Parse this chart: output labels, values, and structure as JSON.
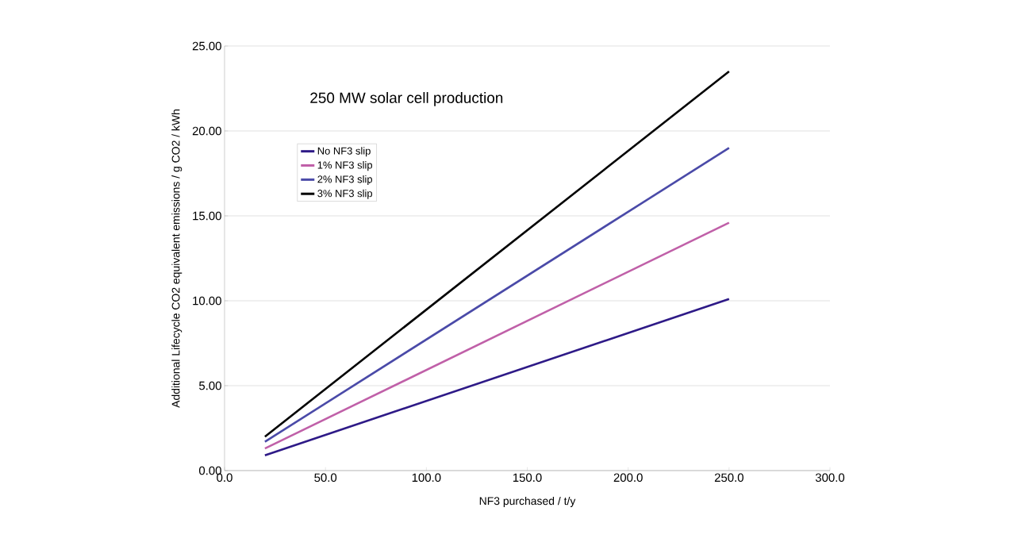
{
  "chart_data": {
    "type": "line",
    "xlabel": "NF3 purchased / t/y",
    "ylabel": "Additional Lifecycle CO2 equivalent emissions / g CO2 / kWh",
    "annotations": [
      "250 MW solar cell production"
    ],
    "x": [
      20,
      250
    ],
    "series": [
      {
        "name": "No NF3 slip",
        "color": "#2e1a87",
        "values": [
          0.9,
          10.1
        ]
      },
      {
        "name": "1% NF3 slip",
        "color": "#c060a8",
        "values": [
          1.3,
          14.6
        ]
      },
      {
        "name": "2% NF3 slip",
        "color": "#4a4aa8",
        "values": [
          1.7,
          19.0
        ]
      },
      {
        "name": "3% NF3 slip",
        "color": "#000000",
        "values": [
          2.0,
          23.5
        ]
      }
    ],
    "xlim": [
      0,
      300
    ],
    "ylim": [
      0,
      25
    ],
    "xticks": [
      {
        "value": 0,
        "label": "0.0"
      },
      {
        "value": 50,
        "label": "50.0"
      },
      {
        "value": 100,
        "label": "100.0"
      },
      {
        "value": 150,
        "label": "150.0"
      },
      {
        "value": 200,
        "label": "200.0"
      },
      {
        "value": 250,
        "label": "250.0"
      },
      {
        "value": 300,
        "label": "300.0"
      }
    ],
    "yticks": [
      {
        "value": 0,
        "label": "0.00"
      },
      {
        "value": 5,
        "label": "5.00"
      },
      {
        "value": 10,
        "label": "10.00"
      },
      {
        "value": 15,
        "label": "15.00"
      },
      {
        "value": 20,
        "label": "20.00"
      },
      {
        "value": 25,
        "label": "25.00"
      }
    ],
    "grid": "y",
    "legend": "left",
    "marker": "none",
    "line_style": "solid"
  }
}
